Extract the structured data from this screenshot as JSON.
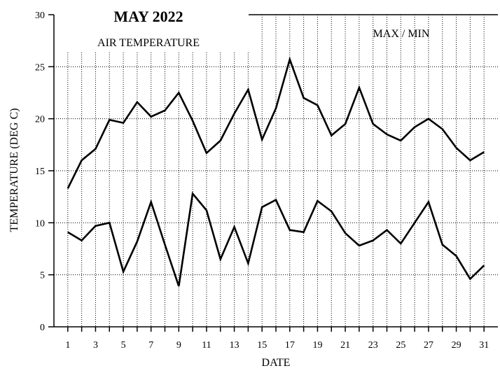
{
  "chart_data": {
    "type": "line",
    "title": "MAY 2022",
    "subtitle": "AIR TEMPERATURE",
    "legend_label": "MAX / MIN",
    "xlabel": "DATE",
    "ylabel": "TEMPERATURE (DEG C)",
    "xlim": [
      0,
      32
    ],
    "ylim": [
      0,
      30
    ],
    "x_ticks": [
      1,
      3,
      5,
      7,
      9,
      11,
      13,
      15,
      17,
      19,
      21,
      23,
      25,
      27,
      29,
      31
    ],
    "y_ticks": [
      0,
      5,
      10,
      15,
      20,
      25,
      30
    ],
    "grid": "dotted",
    "x": [
      1,
      2,
      3,
      4,
      5,
      6,
      7,
      8,
      9,
      10,
      11,
      12,
      13,
      14,
      15,
      16,
      17,
      18,
      19,
      20,
      21,
      22,
      23,
      24,
      25,
      26,
      27,
      28,
      29,
      30,
      31
    ],
    "series": [
      {
        "name": "MAX",
        "values": [
          13.3,
          16.0,
          17.1,
          19.9,
          19.6,
          21.6,
          20.2,
          20.8,
          22.5,
          19.8,
          16.7,
          17.9,
          20.5,
          22.8,
          18.0,
          21.0,
          25.7,
          22.0,
          21.3,
          18.4,
          19.5,
          23.0,
          19.5,
          18.5,
          17.9,
          19.2,
          20.0,
          19.0,
          17.2,
          16.0,
          16.8
        ]
      },
      {
        "name": "MIN",
        "values": [
          9.1,
          8.3,
          9.7,
          10.0,
          5.3,
          8.2,
          12.0,
          7.9,
          3.9,
          12.8,
          11.2,
          6.5,
          9.6,
          6.1,
          11.5,
          12.2,
          9.3,
          9.1,
          12.1,
          11.1,
          9.0,
          7.8,
          8.3,
          9.3,
          8.0,
          10.0,
          12.0,
          7.9,
          6.8,
          4.6,
          5.9
        ]
      }
    ]
  }
}
